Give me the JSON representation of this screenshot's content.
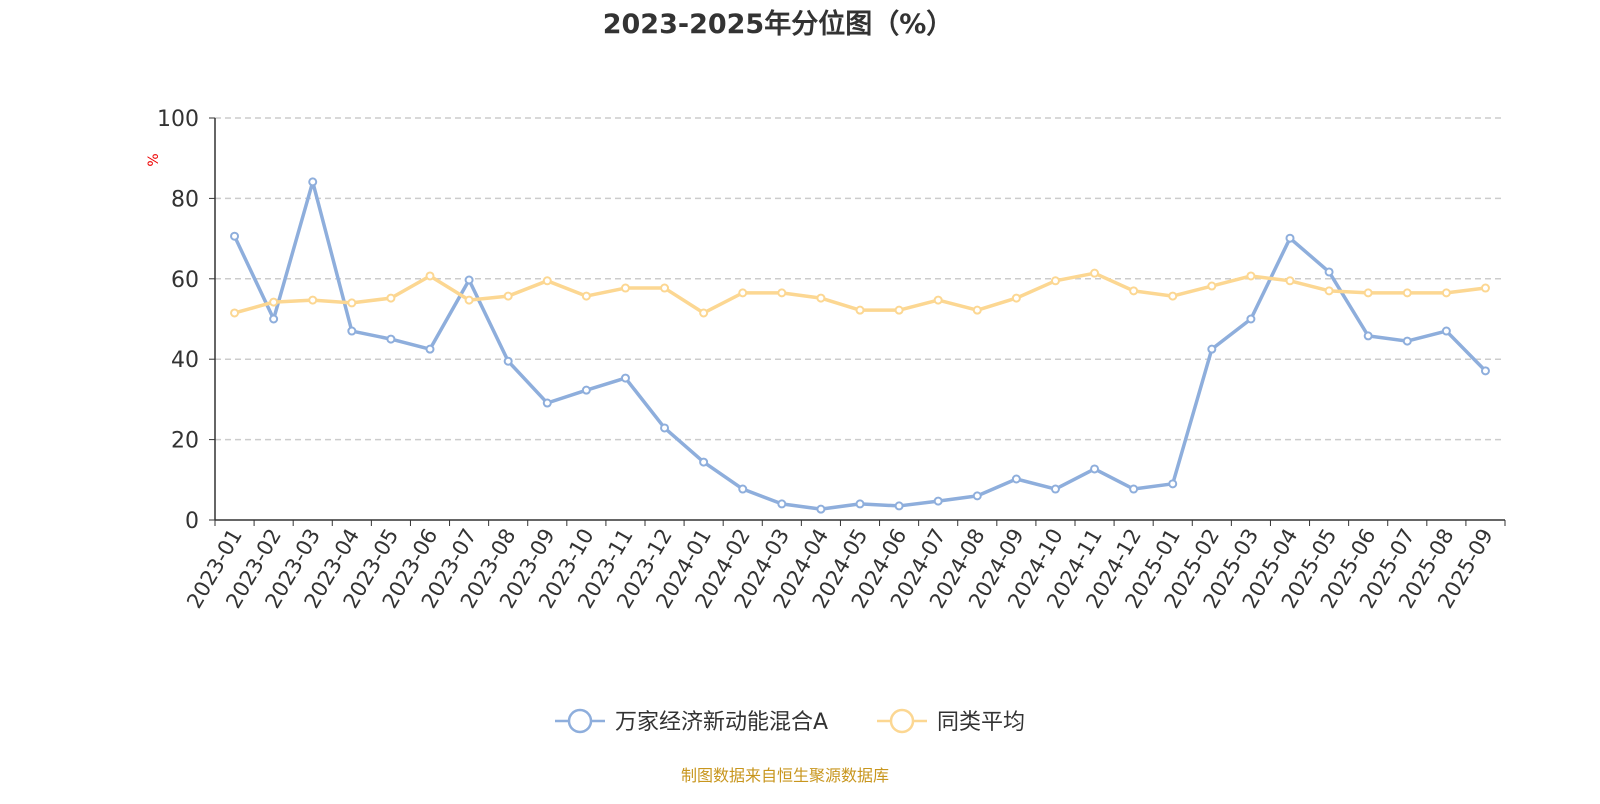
{
  "chart_data": {
    "type": "line",
    "title": "2023-2025年分位图（%）",
    "ylabel": "%",
    "xlabel": "",
    "ylim": [
      0,
      100
    ],
    "yticks": [
      0,
      20,
      40,
      60,
      80,
      100
    ],
    "grid": true,
    "legend_position": "bottom-center",
    "categories": [
      "2023-01",
      "2023-02",
      "2023-03",
      "2023-04",
      "2023-05",
      "2023-06",
      "2023-07",
      "2023-08",
      "2023-09",
      "2023-10",
      "2023-11",
      "2023-12",
      "2024-01",
      "2024-02",
      "2024-03",
      "2024-04",
      "2024-05",
      "2024-06",
      "2024-07",
      "2024-08",
      "2024-09",
      "2024-10",
      "2024-11",
      "2024-12",
      "2025-01",
      "2025-02",
      "2025-03",
      "2025-04",
      "2025-05",
      "2025-06",
      "2025-07",
      "2025-08",
      "2025-09"
    ],
    "series": [
      {
        "name": "万家经济新动能混合A",
        "color": "#8eaedc",
        "values": [
          70.6,
          50,
          84.1,
          47,
          45,
          42.5,
          59.7,
          39.5,
          29.1,
          32.3,
          35.3,
          22.9,
          14.4,
          7.7,
          4,
          2.7,
          4,
          3.5,
          4.7,
          6,
          10.2,
          7.7,
          12.7,
          7.7,
          9,
          42.5,
          50,
          70.1,
          61.7,
          45.8,
          44.5,
          47,
          37.1
        ]
      },
      {
        "name": "同类平均",
        "color": "#fcd792",
        "values": [
          51.5,
          54.2,
          54.7,
          54,
          55.2,
          60.7,
          54.7,
          55.7,
          59.5,
          55.7,
          57.7,
          57.7,
          51.5,
          56.5,
          56.5,
          55.2,
          52.2,
          52.2,
          54.7,
          52.2,
          55.2,
          59.5,
          61.4,
          57,
          55.7,
          58.2,
          60.7,
          59.5,
          57,
          56.5,
          56.5,
          56.5,
          57.7
        ]
      }
    ]
  },
  "footer": {
    "source": "制图数据来自恒生聚源数据库",
    "color": "#c8961e"
  }
}
